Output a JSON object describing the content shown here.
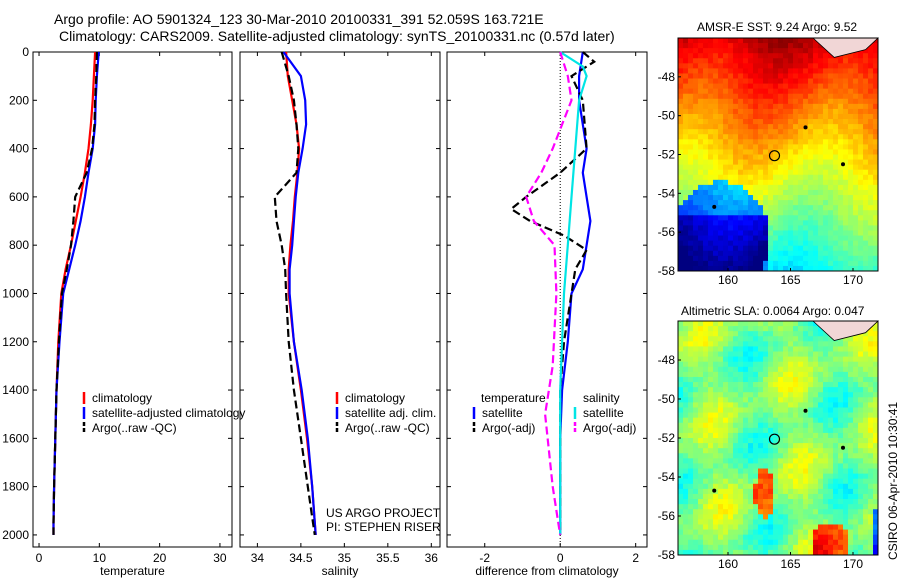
{
  "header": {
    "line1": "Argo profile: AO 5901324_123 30-Mar-2010 20100331_391 52.059S 163.721E",
    "line2": "Climatology: CARS2009. Satellite-adjusted climatology: synTS_20100331.nc (0.57d later)"
  },
  "stamp": "CSIRO 06-Apr-2010 10:30:41",
  "colors": {
    "clim": "#ff0000",
    "sat": "#0000ff",
    "argo": "#000000",
    "sal_sat": "#00e5e5",
    "sal_argo": "#ff00ff"
  },
  "chart_data": [
    {
      "type": "line",
      "xlabel": "temperature",
      "ylabel": "",
      "xlim": [
        -1,
        32
      ],
      "ylim": [
        2050,
        0
      ],
      "xticks": [
        "0",
        "10",
        "20",
        "30"
      ],
      "yticks": [
        "0",
        "200",
        "400",
        "600",
        "800",
        "1000",
        "1200",
        "1400",
        "1600",
        "1800",
        "2000"
      ],
      "legend": [
        "climatology",
        "satellite-adjusted climatology",
        "Argo(..raw -QC)"
      ],
      "series": [
        {
          "name": "climatology",
          "style": "solid",
          "color": "#ff0000",
          "x": [
            9.3,
            9.1,
            8.9,
            8.6,
            8.2,
            7.6,
            6.9,
            6.1,
            5.3,
            4.4,
            3.7,
            3.2,
            2.9,
            2.7,
            2.5,
            2.4,
            2.4
          ],
          "y": [
            0,
            100,
            200,
            300,
            400,
            500,
            600,
            700,
            800,
            900,
            1000,
            1200,
            1400,
            1600,
            1800,
            1950,
            2000
          ]
        },
        {
          "name": "satellite-adjusted climatology",
          "style": "solid",
          "color": "#0000ff",
          "x": [
            9.9,
            9.6,
            9.4,
            9.3,
            8.9,
            8.2,
            7.6,
            6.9,
            6.0,
            5.0,
            4.0,
            3.4,
            2.9,
            2.7,
            2.5,
            2.4,
            2.4
          ],
          "y": [
            0,
            100,
            200,
            300,
            400,
            500,
            600,
            700,
            800,
            900,
            1000,
            1200,
            1400,
            1600,
            1800,
            1950,
            2000
          ]
        },
        {
          "name": "Argo(..raw -QC)",
          "style": "dashed",
          "color": "#000000",
          "x": [
            9.6,
            9.5,
            9.3,
            9.2,
            8.8,
            7.9,
            6.0,
            5.7,
            5.3,
            4.6,
            3.8,
            3.3,
            2.9,
            2.7,
            2.5,
            2.4,
            2.4
          ],
          "y": [
            0,
            100,
            200,
            300,
            400,
            500,
            600,
            700,
            800,
            900,
            1000,
            1200,
            1400,
            1600,
            1800,
            1950,
            2000
          ]
        }
      ]
    },
    {
      "type": "line",
      "xlabel": "salinity",
      "ylabel": "",
      "xlim": [
        33.8,
        36.1
      ],
      "ylim": [
        2050,
        0
      ],
      "xticks": [
        "34",
        "34.5",
        "35",
        "35.5",
        "36"
      ],
      "legend": [
        "climatology",
        "satellite adj. clim.",
        "Argo(..raw -QC)"
      ],
      "annotations": [
        "US ARGO PROJECT",
        "PI: STEPHEN RISER"
      ],
      "series": [
        {
          "name": "climatology",
          "style": "solid",
          "color": "#ff0000",
          "x": [
            34.33,
            34.35,
            34.4,
            34.45,
            34.48,
            34.46,
            34.43,
            34.41,
            34.38,
            34.36,
            34.36,
            34.42,
            34.5,
            34.57,
            34.63,
            34.66,
            34.67
          ],
          "y": [
            0,
            100,
            200,
            300,
            400,
            500,
            600,
            700,
            800,
            900,
            1000,
            1200,
            1400,
            1600,
            1800,
            1950,
            2000
          ]
        },
        {
          "name": "satellite adj. clim.",
          "style": "solid",
          "color": "#0000ff",
          "x": [
            34.3,
            34.5,
            34.55,
            34.56,
            34.52,
            34.47,
            34.44,
            34.42,
            34.4,
            34.37,
            34.37,
            34.42,
            34.51,
            34.58,
            34.63,
            34.66,
            34.67
          ],
          "y": [
            0,
            100,
            200,
            300,
            400,
            500,
            600,
            700,
            800,
            900,
            1000,
            1200,
            1400,
            1600,
            1800,
            1950,
            2000
          ]
        },
        {
          "name": "Argo(..raw -QC)",
          "style": "dashed",
          "color": "#000000",
          "x": [
            34.28,
            34.36,
            34.42,
            34.45,
            34.47,
            34.45,
            34.2,
            34.22,
            34.28,
            34.32,
            34.33,
            34.36,
            34.42,
            34.5,
            34.58,
            34.64,
            34.66
          ],
          "y": [
            0,
            100,
            200,
            300,
            400,
            500,
            600,
            700,
            800,
            900,
            1000,
            1200,
            1400,
            1600,
            1800,
            1950,
            2000
          ]
        }
      ]
    },
    {
      "type": "line",
      "xlabel": "difference from climatology",
      "ylabel": "",
      "xlim": [
        -3,
        2.3
      ],
      "ylim": [
        2050,
        0
      ],
      "xticks": [
        "-2",
        "0",
        "2"
      ],
      "legend": [
        "temperature",
        "satellite",
        "Argo(-adj)",
        "salinity",
        "satellite",
        "Argo(-adj)"
      ],
      "series": [
        {
          "name": "satellite",
          "group": "temperature",
          "style": "solid",
          "color": "#0000ff",
          "x": [
            0.6,
            0.5,
            0.5,
            0.6,
            0.7,
            0.6,
            0.7,
            0.8,
            0.7,
            0.6,
            0.3,
            0.2,
            0.05,
            0.0,
            0.0,
            0.0
          ],
          "y": [
            0,
            100,
            200,
            300,
            400,
            500,
            600,
            700,
            800,
            900,
            1000,
            1200,
            1400,
            1600,
            1800,
            2000
          ]
        },
        {
          "name": "Argo(-adj)",
          "group": "temperature",
          "style": "dashed",
          "color": "#000000",
          "x": [
            0.6,
            0.9,
            0.3,
            0.6,
            0.7,
            0.0,
            -0.9,
            -1.3,
            -0.8,
            0.1,
            0.7,
            0.4,
            0.1,
            0.0,
            0.0,
            0.0,
            0.0
          ],
          "y": [
            0,
            40,
            100,
            200,
            400,
            500,
            600,
            650,
            700,
            760,
            820,
            900,
            1200,
            1400,
            1600,
            1800,
            2000
          ]
        },
        {
          "name": "satellite",
          "group": "salinity",
          "style": "solid",
          "color": "#00e5e5",
          "x": [
            0.0,
            0.6,
            0.7,
            0.5,
            0.4,
            0.3,
            0.2,
            0.1,
            0.05,
            0.0,
            0.0,
            0.0
          ],
          "y": [
            0,
            60,
            100,
            200,
            400,
            600,
            800,
            1000,
            1200,
            1400,
            1700,
            2000
          ]
        },
        {
          "name": "Argo(-adj)",
          "group": "salinity",
          "style": "dashed",
          "color": "#ff00ff",
          "x": [
            0.0,
            0.1,
            0.2,
            0.3,
            -0.2,
            -0.5,
            -0.9,
            -0.7,
            -0.15,
            -0.1,
            -0.2,
            -0.4,
            -0.2,
            -0.05,
            0.0
          ],
          "y": [
            0,
            50,
            100,
            200,
            400,
            500,
            600,
            700,
            800,
            1000,
            1300,
            1500,
            1800,
            1950,
            2000
          ]
        }
      ]
    },
    {
      "type": "heatmap",
      "title": "AMSR-E SST: 9.24 Argo: 9.52",
      "xlim": [
        156,
        172
      ],
      "ylim": [
        -58,
        -46
      ],
      "xticks": [
        "160",
        "165",
        "170"
      ],
      "yticks": [
        "-48",
        "-50",
        "-52",
        "-54",
        "-56",
        "-58"
      ],
      "marker": {
        "lon": 163.72,
        "lat": -52.06
      },
      "palette": "jet"
    },
    {
      "type": "heatmap",
      "title": "Altimetric SLA: 0.0064 Argo: 0.047",
      "xlim": [
        156,
        172
      ],
      "ylim": [
        -58,
        -46
      ],
      "xticks": [
        "160",
        "165",
        "170"
      ],
      "yticks": [
        "-48",
        "-50",
        "-52",
        "-54",
        "-56",
        "-58"
      ],
      "marker": {
        "lon": 163.72,
        "lat": -52.06
      },
      "palette": "jet"
    }
  ]
}
